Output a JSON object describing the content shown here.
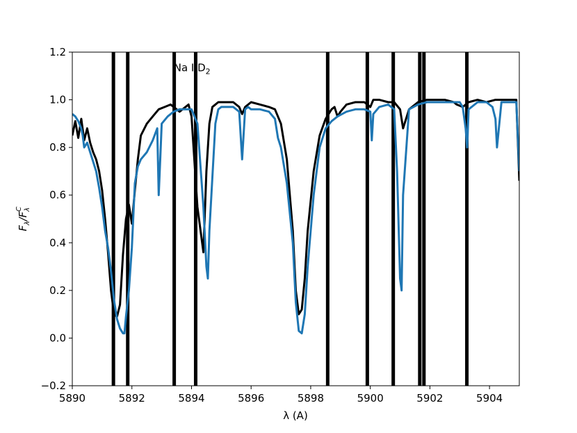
{
  "chart_data": {
    "type": "line",
    "annotation": "Na I D",
    "annotation_sub": "2",
    "annotation_x": 5893.4,
    "annotation_y": 1.12,
    "xlabel": "λ (A)",
    "ylabel": "F_λ/F_λ^C",
    "xlim": [
      5890,
      5905
    ],
    "ylim": [
      -0.2,
      1.2
    ],
    "xticks": [
      5890,
      5892,
      5894,
      5896,
      5898,
      5900,
      5902,
      5904
    ],
    "yticks": [
      -0.2,
      0.0,
      0.2,
      0.4,
      0.6,
      0.8,
      1.0,
      1.2
    ],
    "ytick_labels": [
      "−0.2",
      "0.0",
      "0.2",
      "0.4",
      "0.6",
      "0.8",
      "1.0",
      "1.2"
    ],
    "grid": false,
    "series": [
      {
        "color": "#000000",
        "width": 3,
        "x": [
          5890.0,
          5890.1,
          5890.2,
          5890.3,
          5890.4,
          5890.5,
          5890.6,
          5890.7,
          5890.8,
          5890.9,
          5891.0,
          5891.1,
          5891.2,
          5891.3,
          5891.4,
          5891.5,
          5891.6,
          5891.7,
          5891.8,
          5891.9,
          5892.0,
          5892.1,
          5892.2,
          5892.3,
          5892.5,
          5892.7,
          5892.9,
          5893.1,
          5893.3,
          5893.6,
          5893.9,
          5894.0,
          5894.2,
          5894.4,
          5894.5,
          5894.6,
          5894.7,
          5894.8,
          5894.9,
          5895.0,
          5895.2,
          5895.4,
          5895.6,
          5895.7,
          5895.8,
          5896.0,
          5896.3,
          5896.6,
          5896.8,
          5897.0,
          5897.2,
          5897.4,
          5897.5,
          5897.6,
          5897.7,
          5897.8,
          5897.9,
          5898.1,
          5898.3,
          5898.5,
          5898.7,
          5898.8,
          5898.9,
          5899.0,
          5899.2,
          5899.5,
          5899.8,
          5900.0,
          5900.1,
          5900.3,
          5900.6,
          5900.8,
          5901.0,
          5901.1,
          5901.3,
          5901.6,
          5901.9,
          5902.2,
          5902.5,
          5902.8,
          5902.9,
          5903.1,
          5903.3,
          5903.6,
          5903.9,
          5904.2,
          5904.5,
          5904.7,
          5904.9,
          5905.0
        ],
        "y": [
          0.85,
          0.91,
          0.84,
          0.92,
          0.83,
          0.88,
          0.82,
          0.78,
          0.75,
          0.7,
          0.62,
          0.5,
          0.36,
          0.2,
          0.1,
          0.09,
          0.14,
          0.35,
          0.5,
          0.56,
          0.48,
          0.62,
          0.75,
          0.85,
          0.9,
          0.93,
          0.96,
          0.97,
          0.98,
          0.95,
          0.98,
          0.93,
          0.55,
          0.36,
          0.7,
          0.9,
          0.97,
          0.98,
          0.99,
          0.99,
          0.99,
          0.99,
          0.97,
          0.94,
          0.97,
          0.99,
          0.98,
          0.97,
          0.96,
          0.9,
          0.75,
          0.45,
          0.2,
          0.1,
          0.12,
          0.25,
          0.45,
          0.7,
          0.85,
          0.92,
          0.96,
          0.97,
          0.93,
          0.95,
          0.98,
          0.99,
          0.99,
          0.97,
          1.0,
          1.0,
          0.99,
          0.99,
          0.96,
          0.88,
          0.96,
          0.99,
          1.0,
          1.0,
          1.0,
          0.99,
          0.98,
          0.97,
          0.99,
          1.0,
          0.99,
          1.0,
          1.0,
          1.0,
          1.0,
          0.66
        ]
      },
      {
        "color": "#1f77b4",
        "width": 3,
        "x": [
          5890.0,
          5890.1,
          5890.2,
          5890.3,
          5890.35,
          5890.4,
          5890.5,
          5890.6,
          5890.7,
          5890.8,
          5890.9,
          5891.0,
          5891.1,
          5891.2,
          5891.3,
          5891.4,
          5891.5,
          5891.6,
          5891.7,
          5891.75,
          5891.8,
          5891.9,
          5892.0,
          5892.1,
          5892.2,
          5892.3,
          5892.5,
          5892.7,
          5892.85,
          5892.9,
          5892.95,
          5893.0,
          5893.2,
          5893.4,
          5893.6,
          5893.8,
          5894.0,
          5894.2,
          5894.4,
          5894.5,
          5894.55,
          5894.6,
          5894.8,
          5894.9,
          5895.0,
          5895.2,
          5895.4,
          5895.6,
          5895.7,
          5895.8,
          5895.9,
          5896.0,
          5896.3,
          5896.6,
          5896.8,
          5896.9,
          5897.0,
          5897.2,
          5897.4,
          5897.5,
          5897.6,
          5897.7,
          5897.8,
          5897.9,
          5898.1,
          5898.3,
          5898.5,
          5898.7,
          5898.9,
          5899.2,
          5899.5,
          5899.8,
          5900.0,
          5900.05,
          5900.1,
          5900.3,
          5900.6,
          5900.8,
          5900.9,
          5901.0,
          5901.05,
          5901.1,
          5901.3,
          5901.6,
          5901.9,
          5902.2,
          5902.5,
          5902.8,
          5903.0,
          5903.1,
          5903.2,
          5903.25,
          5903.3,
          5903.6,
          5903.9,
          5904.1,
          5904.2,
          5904.25,
          5904.4,
          5904.7,
          5904.9,
          5905.0
        ],
        "y": [
          0.94,
          0.93,
          0.91,
          0.88,
          0.85,
          0.8,
          0.82,
          0.78,
          0.74,
          0.7,
          0.63,
          0.55,
          0.45,
          0.38,
          0.28,
          0.16,
          0.08,
          0.04,
          0.02,
          0.02,
          0.09,
          0.2,
          0.38,
          0.65,
          0.72,
          0.75,
          0.78,
          0.83,
          0.88,
          0.6,
          0.75,
          0.9,
          0.93,
          0.95,
          0.96,
          0.96,
          0.96,
          0.9,
          0.55,
          0.3,
          0.25,
          0.45,
          0.9,
          0.96,
          0.97,
          0.97,
          0.97,
          0.95,
          0.75,
          0.96,
          0.97,
          0.96,
          0.96,
          0.95,
          0.92,
          0.84,
          0.8,
          0.65,
          0.4,
          0.15,
          0.03,
          0.02,
          0.1,
          0.3,
          0.6,
          0.8,
          0.88,
          0.91,
          0.93,
          0.95,
          0.96,
          0.96,
          0.95,
          0.83,
          0.94,
          0.97,
          0.98,
          0.96,
          0.7,
          0.25,
          0.2,
          0.6,
          0.96,
          0.98,
          0.99,
          0.99,
          0.99,
          0.99,
          0.99,
          0.97,
          0.88,
          0.8,
          0.96,
          0.99,
          0.99,
          0.97,
          0.92,
          0.8,
          0.99,
          0.99,
          0.99,
          0.7
        ]
      }
    ],
    "vertical_markers": [
      5891.38,
      5891.86,
      5893.42,
      5894.14,
      5898.57,
      5899.9,
      5900.77,
      5901.66,
      5901.8,
      5903.24
    ]
  }
}
